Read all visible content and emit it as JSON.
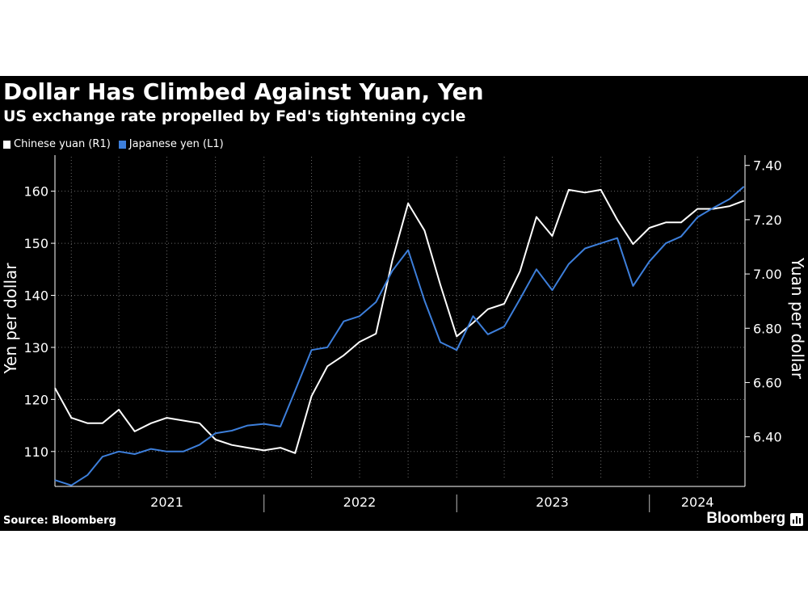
{
  "chart_data": {
    "type": "line",
    "title": "Dollar Has Climbed Against Yuan, Yen",
    "subtitle": "US exchange rate propelled by Fed's tightening cycle",
    "legend": [
      {
        "label": "Chinese yuan (R1)",
        "color": "#ffffff"
      },
      {
        "label": "Japanese yen  (L1)",
        "color": "#3d7fdb"
      }
    ],
    "left_axis": {
      "label": "Yen per dollar",
      "range": [
        105,
        166
      ],
      "ticks": [
        "110",
        "120",
        "130",
        "140",
        "150",
        "160"
      ],
      "tick_values": [
        110,
        120,
        130,
        140,
        150,
        160
      ]
    },
    "right_axis": {
      "label": "Yuan per dollar",
      "range": [
        6.25,
        7.42
      ],
      "ticks": [
        "6.40",
        "6.60",
        "6.80",
        "7.00",
        "7.20",
        "7.40"
      ],
      "tick_values": [
        6.4,
        6.6,
        6.8,
        7.0,
        7.2,
        7.4
      ]
    },
    "x_axis": {
      "range": [
        "2020-12-01",
        "2024-06-30"
      ],
      "labels": [
        "2021",
        "2022",
        "2023",
        "2024"
      ],
      "label_dates": [
        "2021-07-01",
        "2022-07-01",
        "2023-07-01",
        "2024-04-01"
      ],
      "year_dividers": [
        "2022-01-01",
        "2023-01-01",
        "2024-01-01"
      ]
    },
    "grid": true,
    "series": [
      {
        "name": "Chinese yuan (R1)",
        "axis": "right",
        "color": "#ffffff",
        "x": [
          "2020-12-01",
          "2021-01-01",
          "2021-02-01",
          "2021-03-01",
          "2021-04-01",
          "2021-05-01",
          "2021-06-01",
          "2021-07-01",
          "2021-08-01",
          "2021-09-01",
          "2021-10-01",
          "2021-11-01",
          "2021-12-01",
          "2022-01-01",
          "2022-02-01",
          "2022-03-01",
          "2022-04-01",
          "2022-05-01",
          "2022-06-01",
          "2022-07-01",
          "2022-08-01",
          "2022-09-01",
          "2022-10-01",
          "2022-11-01",
          "2022-12-01",
          "2023-01-01",
          "2023-02-01",
          "2023-03-01",
          "2023-04-01",
          "2023-05-01",
          "2023-06-01",
          "2023-07-01",
          "2023-08-01",
          "2023-09-01",
          "2023-10-01",
          "2023-11-01",
          "2023-12-01",
          "2024-01-01",
          "2024-02-01",
          "2024-03-01",
          "2024-04-01",
          "2024-05-01",
          "2024-06-01",
          "2024-06-28"
        ],
        "values": [
          6.58,
          6.47,
          6.45,
          6.45,
          6.5,
          6.42,
          6.45,
          6.47,
          6.46,
          6.45,
          6.39,
          6.37,
          6.36,
          6.35,
          6.36,
          6.34,
          6.55,
          6.66,
          6.7,
          6.75,
          6.78,
          7.05,
          7.26,
          7.16,
          6.96,
          6.77,
          6.82,
          6.87,
          6.89,
          7.01,
          7.21,
          7.14,
          7.31,
          7.3,
          7.31,
          7.2,
          7.11,
          7.17,
          7.19,
          7.19,
          7.24,
          7.24,
          7.25,
          7.27
        ]
      },
      {
        "name": "Japanese yen  (L1)",
        "axis": "left",
        "color": "#3d7fdb",
        "x": [
          "2020-12-01",
          "2021-01-01",
          "2021-02-01",
          "2021-03-01",
          "2021-04-01",
          "2021-05-01",
          "2021-06-01",
          "2021-07-01",
          "2021-08-01",
          "2021-09-01",
          "2021-10-01",
          "2021-11-01",
          "2021-12-01",
          "2022-01-01",
          "2022-02-01",
          "2022-03-01",
          "2022-04-01",
          "2022-05-01",
          "2022-06-01",
          "2022-07-01",
          "2022-08-01",
          "2022-09-01",
          "2022-10-01",
          "2022-11-01",
          "2022-12-01",
          "2023-01-01",
          "2023-02-01",
          "2023-03-01",
          "2023-04-01",
          "2023-05-01",
          "2023-06-01",
          "2023-07-01",
          "2023-08-01",
          "2023-09-01",
          "2023-10-01",
          "2023-11-01",
          "2023-12-01",
          "2024-01-01",
          "2024-02-01",
          "2024-03-01",
          "2024-04-01",
          "2024-05-01",
          "2024-06-01",
          "2024-06-28"
        ],
        "values": [
          104.5,
          103.5,
          105.5,
          109.0,
          110.0,
          109.5,
          110.5,
          110.0,
          110.0,
          111.3,
          113.5,
          114.0,
          115.0,
          115.3,
          114.8,
          121.7,
          129.5,
          130.0,
          135.0,
          136.0,
          138.7,
          144.7,
          148.7,
          139.0,
          131.0,
          129.5,
          136.0,
          132.5,
          134.0,
          139.3,
          145.0,
          141.0,
          146.0,
          149.0,
          150.0,
          151.0,
          141.8,
          146.5,
          150.0,
          151.3,
          155.0,
          156.8,
          158.5,
          160.9
        ]
      }
    ]
  },
  "source": "Source: Bloomberg",
  "brand": "Bloomberg"
}
